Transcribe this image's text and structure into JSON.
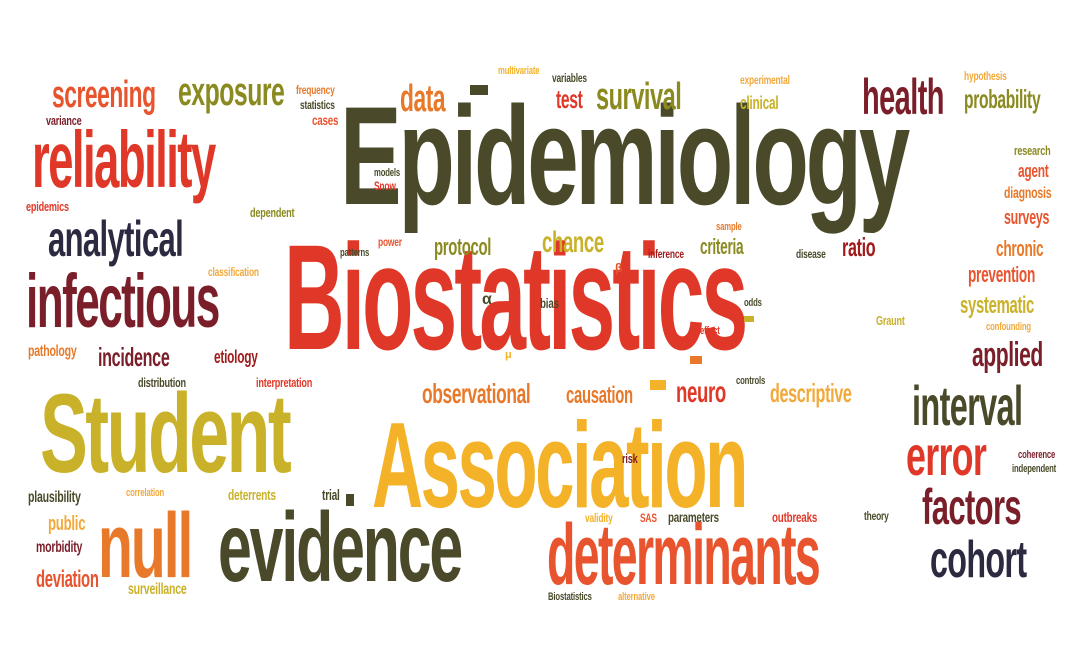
{
  "colors": {
    "dark_olive": "#4a4a2a",
    "red": "#e03828",
    "orange_red": "#e8542e",
    "orange": "#e8792a",
    "amber": "#f2a93b",
    "gold": "#f4b228",
    "mustard": "#c9b22a",
    "olive": "#8a8a20",
    "maroon": "#7a1f2a",
    "dark_red": "#a01c1c",
    "navy": "#2c2a40"
  },
  "words": {
    "epidemiology": "Epidemiology",
    "biostatistics": "Biostatistics",
    "student": "Student",
    "association": "Association",
    "reliability": "reliability",
    "evidence": "evidence",
    "determinants": "determinants",
    "infectious": "infectious",
    "analytical": "analytical",
    "screening": "screening",
    "exposure": "exposure",
    "null": "null",
    "health": "health",
    "probability": "probability",
    "interval": "interval",
    "error": "error",
    "factors": "factors",
    "cohort": "cohort",
    "applied": "applied",
    "systematic": "systematic",
    "prevention": "prevention",
    "chronic": "chronic",
    "surveys": "surveys",
    "data": "data",
    "test": "test",
    "survival": "survival",
    "clinical": "clinical",
    "experimental": "experimental",
    "variables": "variables",
    "multivariate": "multivariate",
    "frequency": "frequency",
    "statistics": "statistics",
    "cases": "cases",
    "hypothesis": "hypothesis",
    "research": "research",
    "agent": "agent",
    "diagnosis": "diagnosis",
    "variance": "variance",
    "epidemics": "epidemics",
    "dependent": "dependent",
    "models": "models",
    "snow": "Snow",
    "protocol": "protocol",
    "chance": "chance",
    "criteria": "criteria",
    "ratio": "ratio",
    "sample": "sample",
    "inference": "inference",
    "disease": "disease",
    "power": "power",
    "patterns": "patterns",
    "classification": "classification",
    "alpha": "α",
    "beta": "β",
    "mu": "μ",
    "bias": "bias",
    "odds": "odds",
    "effect": "effect",
    "graunt": "Graunt",
    "confounding": "confounding",
    "pathology": "pathology",
    "incidence": "incidence",
    "etiology": "etiology",
    "distribution": "distribution",
    "interpretation": "interpretation",
    "observational": "observational",
    "causation": "causation",
    "neuro": "neuro",
    "descriptive": "descriptive",
    "controls": "controls",
    "coherence": "coherence",
    "independent": "independent",
    "risk": "risk",
    "plausibility": "plausibility",
    "correlation": "correlation",
    "deterrents": "deterrents",
    "trial": "trial",
    "public": "public",
    "morbidity": "morbidity",
    "deviation": "deviation",
    "surveillance": "surveillance",
    "validity": "validity",
    "sas": "SAS",
    "parameters": "parameters",
    "outbreaks": "outbreaks",
    "theory": "theory",
    "biostatistics_small": "Biostatistics",
    "alternative": "alternative"
  }
}
